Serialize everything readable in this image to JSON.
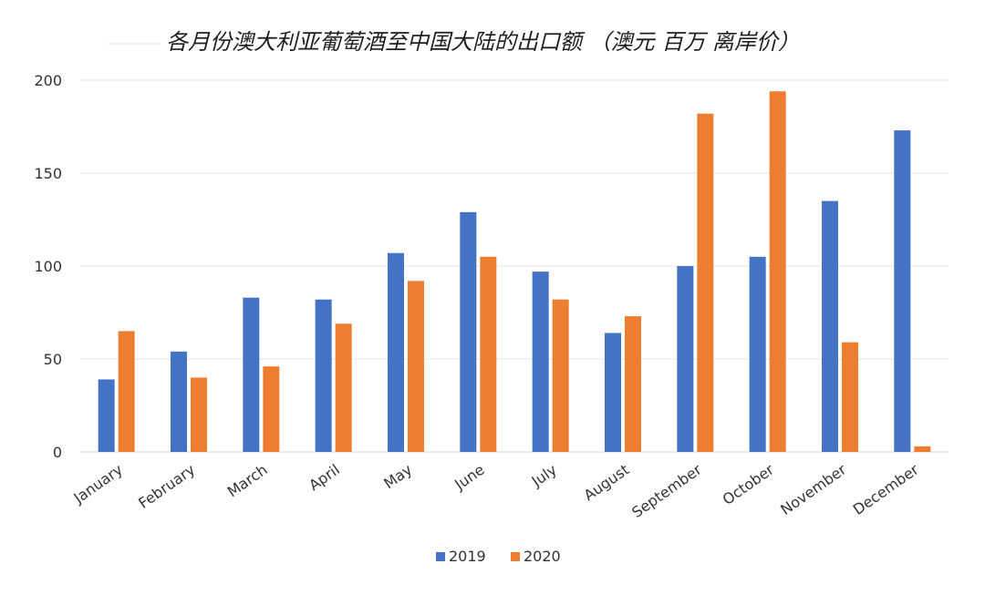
{
  "chart_data": {
    "type": "bar",
    "title": "各月份澳大利亚葡萄酒至中国大陆的出口额 （澳元 百万 离岸价）",
    "categories": [
      "January",
      "February",
      "March",
      "April",
      "May",
      "June",
      "July",
      "August",
      "September",
      "October",
      "November",
      "December"
    ],
    "series": [
      {
        "name": "2019",
        "color": "#4472C4",
        "values": [
          39,
          54,
          83,
          82,
          107,
          129,
          97,
          64,
          100,
          105,
          135,
          173
        ]
      },
      {
        "name": "2020",
        "color": "#ED7D31",
        "values": [
          65,
          40,
          46,
          69,
          92,
          105,
          82,
          73,
          182,
          194,
          59,
          3
        ]
      }
    ],
    "ylim": [
      0,
      200
    ],
    "yticks": [
      0,
      50,
      100,
      150,
      200
    ],
    "xlabel": "",
    "ylabel": "",
    "grid": true,
    "legend_position": "bottom"
  }
}
